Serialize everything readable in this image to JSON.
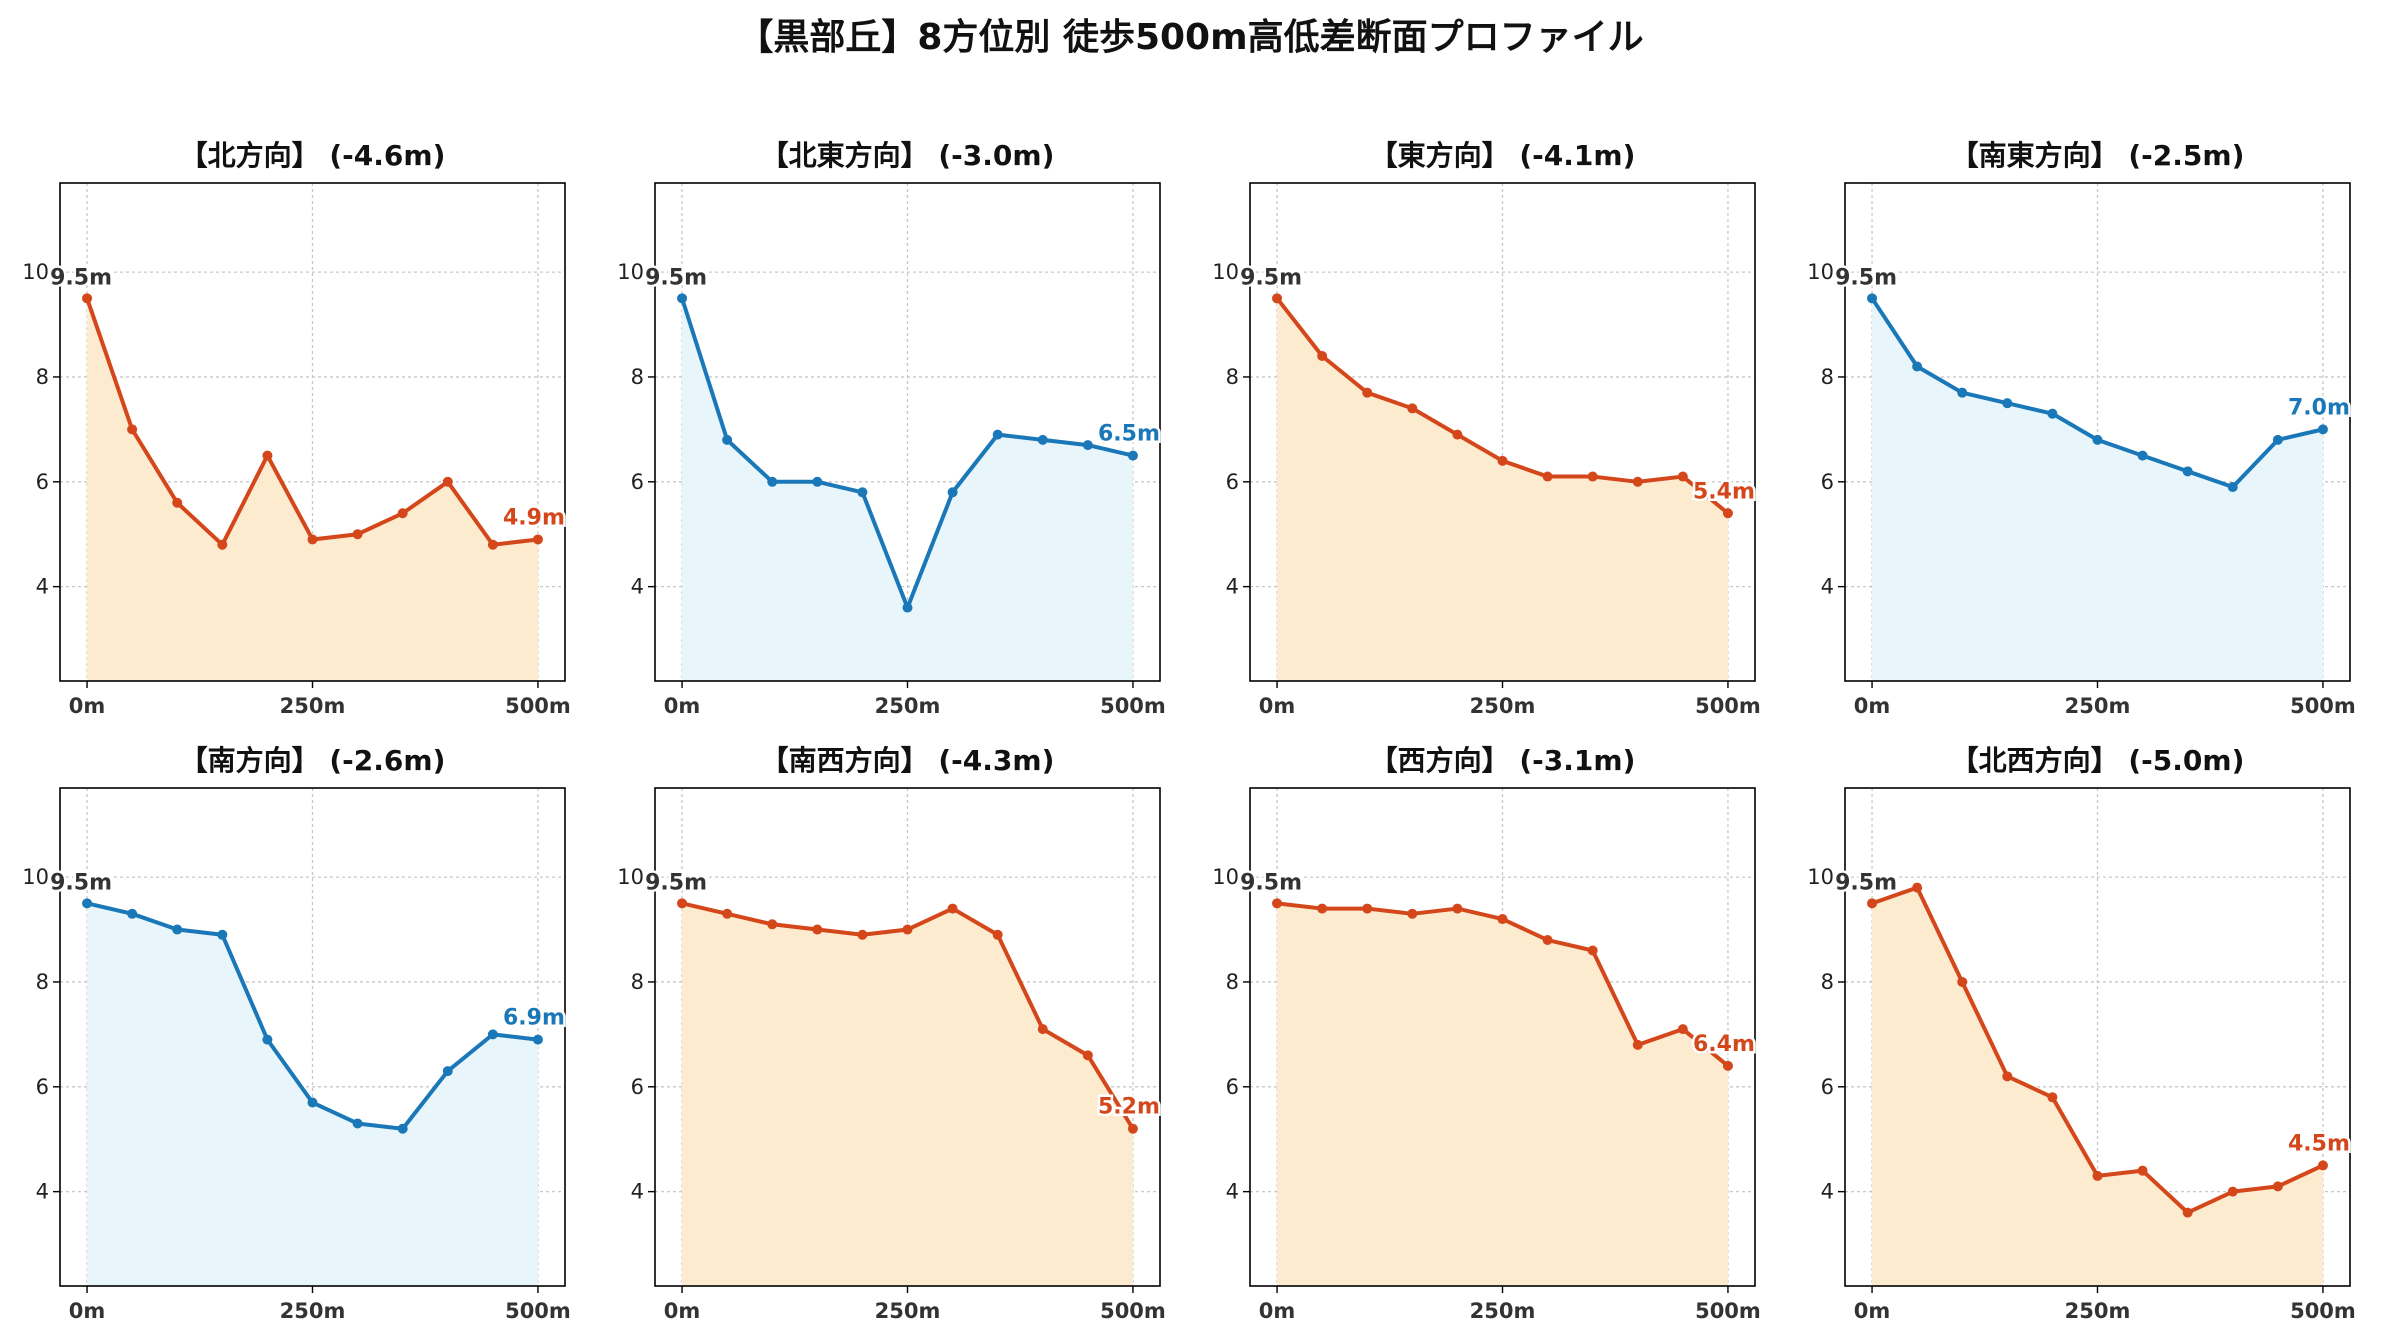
{
  "title": "【黒部丘】8方位別 徒歩500m高低差断面プロファイル",
  "colors": {
    "down_line": "#d4471b",
    "down_fill": "#fdebd0",
    "up_line": "#1a78b8",
    "up_fill": "#e8f5fb",
    "start_label": "#333333",
    "grid": "#c8c8c8"
  },
  "chart_data": [
    {
      "type": "area",
      "title": "【北方向】 (-4.6m)",
      "theme": "down",
      "x": [
        0,
        50,
        100,
        150,
        200,
        250,
        300,
        350,
        400,
        450,
        500
      ],
      "y": [
        9.5,
        7.0,
        5.6,
        4.8,
        6.5,
        4.9,
        5.0,
        5.4,
        6.0,
        4.8,
        4.9
      ],
      "start_label": "9.5m",
      "end_label": "4.9m"
    },
    {
      "type": "area",
      "title": "【北東方向】 (-3.0m)",
      "theme": "up",
      "x": [
        0,
        50,
        100,
        150,
        200,
        250,
        300,
        350,
        400,
        450,
        500
      ],
      "y": [
        9.5,
        6.8,
        6.0,
        6.0,
        5.8,
        3.6,
        5.8,
        6.9,
        6.8,
        6.7,
        6.5
      ],
      "start_label": "9.5m",
      "end_label": "6.5m"
    },
    {
      "type": "area",
      "title": "【東方向】 (-4.1m)",
      "theme": "down",
      "x": [
        0,
        50,
        100,
        150,
        200,
        250,
        300,
        350,
        400,
        450,
        500
      ],
      "y": [
        9.5,
        8.4,
        7.7,
        7.4,
        6.9,
        6.4,
        6.1,
        6.1,
        6.0,
        6.1,
        5.4
      ],
      "start_label": "9.5m",
      "end_label": "5.4m"
    },
    {
      "type": "area",
      "title": "【南東方向】 (-2.5m)",
      "theme": "up",
      "x": [
        0,
        50,
        100,
        150,
        200,
        250,
        300,
        350,
        400,
        450,
        500
      ],
      "y": [
        9.5,
        8.2,
        7.7,
        7.5,
        7.3,
        6.8,
        6.5,
        6.2,
        5.9,
        6.8,
        7.0
      ],
      "start_label": "9.5m",
      "end_label": "7.0m"
    },
    {
      "type": "area",
      "title": "【南方向】 (-2.6m)",
      "theme": "up",
      "x": [
        0,
        50,
        100,
        150,
        200,
        250,
        300,
        350,
        400,
        450,
        500
      ],
      "y": [
        9.5,
        9.3,
        9.0,
        8.9,
        6.9,
        5.7,
        5.3,
        5.2,
        6.3,
        7.0,
        6.9
      ],
      "start_label": "9.5m",
      "end_label": "6.9m"
    },
    {
      "type": "area",
      "title": "【南西方向】 (-4.3m)",
      "theme": "down",
      "x": [
        0,
        50,
        100,
        150,
        200,
        250,
        300,
        350,
        400,
        450,
        500
      ],
      "y": [
        9.5,
        9.3,
        9.1,
        9.0,
        8.9,
        9.0,
        9.4,
        8.9,
        7.1,
        6.6,
        5.2
      ],
      "start_label": "9.5m",
      "end_label": "5.2m"
    },
    {
      "type": "area",
      "title": "【西方向】 (-3.1m)",
      "theme": "down",
      "x": [
        0,
        50,
        100,
        150,
        200,
        250,
        300,
        350,
        400,
        450,
        500
      ],
      "y": [
        9.5,
        9.4,
        9.4,
        9.3,
        9.4,
        9.2,
        8.8,
        8.6,
        6.8,
        7.1,
        6.4
      ],
      "start_label": "9.5m",
      "end_label": "6.4m"
    },
    {
      "type": "area",
      "title": "【北西方向】 (-5.0m)",
      "theme": "down",
      "x": [
        0,
        50,
        100,
        150,
        200,
        250,
        300,
        350,
        400,
        450,
        500
      ],
      "y": [
        9.5,
        9.8,
        8.0,
        6.2,
        5.8,
        4.3,
        4.4,
        3.6,
        4.0,
        4.1,
        4.5
      ],
      "start_label": "9.5m",
      "end_label": "4.5m"
    }
  ],
  "axes": {
    "xlim": [
      -30,
      530
    ],
    "ylim": [
      2.2,
      11.7
    ],
    "yticks": [
      4,
      6,
      8,
      10
    ],
    "ytick_labels": [
      "4",
      "6",
      "8",
      "10"
    ],
    "xticks": [
      0,
      250,
      500
    ],
    "xtick_labels": [
      "0m",
      "250m",
      "500m"
    ],
    "grid": true
  }
}
